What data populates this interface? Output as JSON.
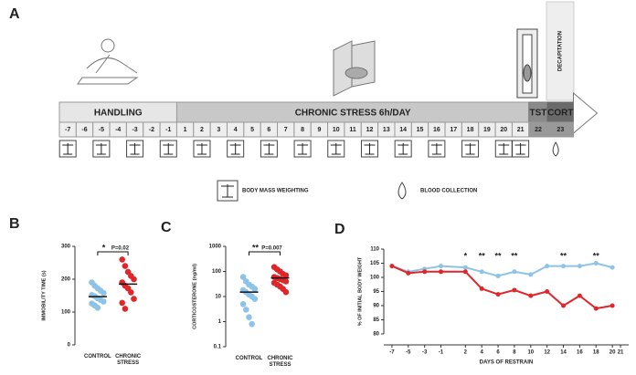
{
  "panels": [
    "A",
    "B",
    "C",
    "D"
  ],
  "timeline": {
    "header": [
      "HANDLING",
      "CHRONIC STRESS 6h/DAY",
      "TST",
      "CORT"
    ],
    "days": [
      -7,
      -6,
      -5,
      -4,
      -3,
      -2,
      -1,
      1,
      2,
      3,
      4,
      5,
      6,
      7,
      8,
      9,
      10,
      11,
      12,
      13,
      14,
      15,
      16,
      17,
      18,
      19,
      20,
      21,
      22,
      23
    ],
    "decapitation": "DECAPITATION",
    "legend": [
      "BODY MASS WEIGHTING",
      "BLOOD COLLECTION"
    ]
  },
  "chart_data": [
    {
      "type": "strip",
      "y_label": "IMMOBILITY TIME (s)",
      "categories": [
        "CONTROL",
        "CHRONIC STRESS"
      ],
      "groups": [
        {
          "color": "#8ec3e8",
          "values": [
            190,
            180,
            172,
            165,
            158,
            152,
            148,
            142,
            137,
            132,
            126,
            120,
            113
          ],
          "mean": 147
        },
        {
          "color": "#e0262b",
          "values": [
            260,
            240,
            222,
            210,
            200,
            190,
            180,
            172,
            160,
            140,
            128,
            110
          ],
          "mean": 185
        }
      ],
      "ylim": [
        0,
        300
      ],
      "yticks": [
        0,
        100,
        200,
        300
      ],
      "log": false,
      "stars": "*",
      "p": "P=0.02"
    },
    {
      "type": "strip",
      "y_label": "CORTICOSTERONE (ng/ml)",
      "categories": [
        "CONTROL",
        "CHRONIC STRESS"
      ],
      "groups": [
        {
          "color": "#8ec3e8",
          "values": [
            60,
            40,
            30,
            25,
            20,
            18,
            15,
            12,
            10,
            8,
            5,
            3,
            1.5,
            0.8
          ],
          "mean": 15
        },
        {
          "color": "#e0262b",
          "values": [
            150,
            120,
            100,
            80,
            70,
            60,
            55,
            50,
            45,
            40,
            35,
            30,
            25,
            20,
            15
          ],
          "mean": 55
        }
      ],
      "ylim": [
        0.1,
        1000
      ],
      "yticks": [
        0.1,
        1,
        10,
        100,
        1000
      ],
      "log": true,
      "stars": "**",
      "p": "P=0.007"
    },
    {
      "type": "line",
      "x_label": "DAYS OF RESTRAIN",
      "y_label": "% OF INITIAL BODY WEIGHT",
      "x": [
        -7,
        -5,
        -3,
        -1,
        2,
        4,
        6,
        8,
        10,
        12,
        14,
        16,
        18,
        20
      ],
      "series": [
        {
          "color": "#8ec3e8",
          "values": [
            104,
            102,
            103,
            104,
            103.5,
            102,
            100.5,
            102,
            101,
            104,
            104,
            104,
            105,
            103.5
          ]
        },
        {
          "color": "#e0262b",
          "values": [
            104,
            101.5,
            102,
            102,
            102,
            96,
            94,
            95.5,
            93.5,
            95,
            90,
            93.5,
            89,
            90
          ]
        }
      ],
      "xlim": [
        -8,
        22
      ],
      "xticks": [
        -7,
        -5,
        -3,
        -1,
        2,
        4,
        6,
        8,
        10,
        12,
        14,
        16,
        18,
        20,
        21
      ],
      "ylim": [
        80,
        110
      ],
      "yticks": [
        80,
        85,
        90,
        95,
        100,
        105,
        110
      ],
      "annotations": [
        {
          "x": 2,
          "text": "*"
        },
        {
          "x": 4,
          "text": "**"
        },
        {
          "x": 6,
          "text": "**"
        },
        {
          "x": 8,
          "text": "**"
        },
        {
          "x": 14,
          "text": "**"
        },
        {
          "x": 18,
          "text": "**"
        }
      ]
    }
  ]
}
